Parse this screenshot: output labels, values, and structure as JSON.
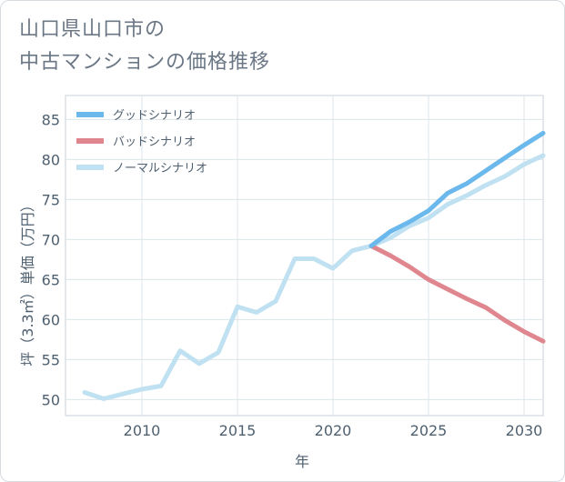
{
  "header": {
    "title_line1": "山口県山口市の",
    "title_line2": "中古マンションの価格推移"
  },
  "chart_data": {
    "type": "line",
    "title": "山口県山口市の中古マンションの価格推移",
    "xlabel": "年",
    "ylabel": "坪（3.3㎡）単価（万円）",
    "xlim": [
      2006,
      2031
    ],
    "ylim": [
      48,
      88
    ],
    "xticks": [
      2010,
      2015,
      2020,
      2025,
      2030
    ],
    "yticks": [
      50,
      55,
      60,
      65,
      70,
      75,
      80,
      85
    ],
    "grid": true,
    "legend_position": "top-left",
    "series": [
      {
        "name": "グッドシナリオ",
        "color": "#6bb8ec",
        "x": [
          2022,
          2023,
          2024,
          2025,
          2026,
          2027,
          2028,
          2029,
          2030,
          2031
        ],
        "y": [
          69.2,
          71.0,
          72.2,
          73.6,
          75.8,
          77.0,
          78.6,
          80.2,
          81.8,
          83.3
        ]
      },
      {
        "name": "バッドシナリオ",
        "color": "#e0868e",
        "x": [
          2022,
          2023,
          2024,
          2025,
          2026,
          2027,
          2028,
          2029,
          2030,
          2031
        ],
        "y": [
          69.2,
          68.0,
          66.6,
          65.0,
          63.8,
          62.6,
          61.5,
          59.9,
          58.5,
          57.3
        ]
      },
      {
        "name": "ノーマルシナリオ",
        "color": "#bfe1f1",
        "x": [
          2007,
          2008,
          2009,
          2010,
          2011,
          2012,
          2013,
          2014,
          2015,
          2016,
          2017,
          2018,
          2019,
          2020,
          2021,
          2022,
          2023,
          2024,
          2025,
          2026,
          2027,
          2028,
          2029,
          2030,
          2031
        ],
        "y": [
          50.9,
          50.1,
          50.7,
          51.3,
          51.7,
          56.1,
          54.5,
          55.9,
          61.6,
          60.9,
          62.3,
          67.6,
          67.6,
          66.4,
          68.6,
          69.2,
          70.2,
          71.7,
          72.7,
          74.4,
          75.5,
          76.8,
          77.9,
          79.4,
          80.5
        ]
      }
    ]
  }
}
